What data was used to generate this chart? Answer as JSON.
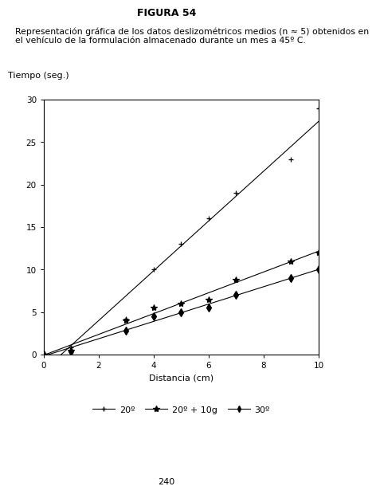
{
  "title": "FIGURA 54",
  "caption_line1": "Representación gráfica de los datos deslizométricos medios (n ≈ 5) obtenidos en",
  "caption_line2": "el vehículo de la formulación almacenado durante un mes a 45º C.",
  "xlabel": "Distancia (cm)",
  "ylabel": "Tiempo (seg.)",
  "xlim": [
    0,
    10
  ],
  "ylim": [
    0,
    30
  ],
  "xticks": [
    0,
    2,
    4,
    6,
    8,
    10
  ],
  "yticks": [
    0,
    5,
    10,
    15,
    20,
    25,
    30
  ],
  "page_number": "240",
  "series": [
    {
      "label": "20º",
      "marker": "plus",
      "x": [
        0,
        1,
        3,
        4,
        5,
        6,
        7,
        9,
        10
      ],
      "y": [
        0,
        0.8,
        4.2,
        10.0,
        13.0,
        16.0,
        19.0,
        23.0,
        29.0
      ]
    },
    {
      "label": "20º + 10g",
      "marker": "star",
      "x": [
        0,
        1,
        3,
        4,
        5,
        6,
        7,
        9,
        10
      ],
      "y": [
        0,
        0.5,
        4.0,
        5.5,
        6.0,
        6.5,
        8.8,
        11.0,
        12.0
      ]
    },
    {
      "label": "30º",
      "marker": "diamond",
      "x": [
        0,
        1,
        3,
        4,
        5,
        6,
        7,
        9,
        10
      ],
      "y": [
        0,
        0.4,
        2.8,
        4.5,
        5.0,
        5.5,
        7.0,
        9.0,
        10.0
      ]
    }
  ],
  "background_color": "#ffffff",
  "line_color": "#000000",
  "text_color": "#000000"
}
